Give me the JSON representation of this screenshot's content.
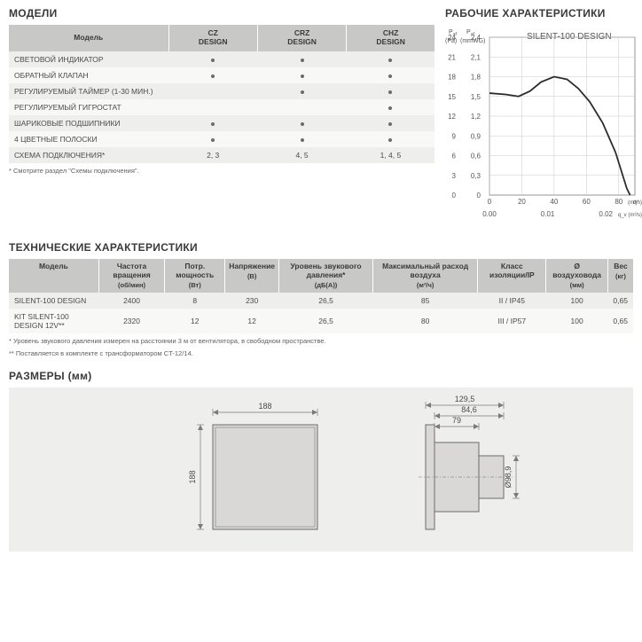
{
  "sections": {
    "models_title": "МОДЕЛИ",
    "perf_title": "РАБОЧИЕ ХАРАКТЕРИСТИКИ",
    "specs_title": "ТЕХНИЧЕСКИЕ ХАРАКТЕРИСТИКИ",
    "dims_title": "РАЗМЕРЫ (мм)"
  },
  "models": {
    "headers": [
      "Модель",
      "CZ\nDESIGN",
      "CRZ\nDESIGN",
      "CHZ\nDESIGN"
    ],
    "rows": [
      {
        "label": "СВЕТОВОЙ ИНДИКАТОР",
        "cz": true,
        "crz": true,
        "chz": true
      },
      {
        "label": "ОБРАТНЫЙ КЛАПАН",
        "cz": true,
        "crz": true,
        "chz": true
      },
      {
        "label": "РЕГУЛИРУЕМЫЙ ТАЙМЕР (1-30 МИН.)",
        "cz": false,
        "crz": true,
        "chz": true
      },
      {
        "label": "РЕГУЛИРУЕМЫЙ ГИГРОСТАТ",
        "cz": false,
        "crz": false,
        "chz": true
      },
      {
        "label": "ШАРИКОВЫЕ ПОДШИПНИКИ",
        "cz": true,
        "crz": true,
        "chz": true
      },
      {
        "label": "4 ЦВЕТНЫЕ ПОЛОСКИ",
        "cz": true,
        "crz": true,
        "chz": true
      }
    ],
    "scheme_row": {
      "label": "СХЕМА ПОДКЛЮЧЕНИЯ*",
      "cz": "2, 3",
      "crz": "4, 5",
      "chz": "1, 4, 5"
    },
    "footnote": "* Смотрите раздел \"Схемы подключения\"."
  },
  "chart": {
    "type": "line",
    "title": "SILENT-100 DESIGN",
    "title_fontsize": 10,
    "axis_left1": {
      "label": "P_sf",
      "unit": "(Pa)",
      "ticks": [
        0,
        3,
        6,
        9,
        12,
        15,
        18,
        21,
        24
      ]
    },
    "axis_left2": {
      "label": "P_sf",
      "unit": "(mmWG)",
      "ticks": [
        0,
        0.3,
        0.6,
        0.9,
        1.2,
        1.5,
        1.8,
        2.1,
        2.4
      ]
    },
    "axis_bottom1": {
      "label": "q_v (m³/h)",
      "ticks": [
        0,
        20,
        40,
        60,
        80
      ]
    },
    "axis_bottom2": {
      "label": "q_v (m³/s)",
      "ticks": [
        0.0,
        0.01,
        0.02
      ]
    },
    "ylim": [
      0,
      24
    ],
    "xlim": [
      0,
      90
    ],
    "curve": [
      [
        0,
        15.5
      ],
      [
        10,
        15.3
      ],
      [
        18,
        15.0
      ],
      [
        25,
        15.8
      ],
      [
        32,
        17.2
      ],
      [
        40,
        18.0
      ],
      [
        48,
        17.6
      ],
      [
        55,
        16.2
      ],
      [
        62,
        14.2
      ],
      [
        70,
        11.0
      ],
      [
        78,
        6.5
      ],
      [
        85,
        1.0
      ],
      [
        87,
        0
      ]
    ],
    "line_color": "#2b2b2b",
    "line_width": 1.8,
    "grid_color": "#c8c8c8",
    "frame_color": "#7a7a7a",
    "background": "#ffffff",
    "tick_font": 8,
    "label_color": "#555"
  },
  "specs": {
    "headers": [
      {
        "t": "Модель",
        "u": ""
      },
      {
        "t": "Частота вращения",
        "u": "(об/мин)"
      },
      {
        "t": "Потр. мощность",
        "u": "(Вт)"
      },
      {
        "t": "Напряжение",
        "u": "(В)"
      },
      {
        "t": "Уровень звукового давления*",
        "u": "(дБ(А))"
      },
      {
        "t": "Максимальный расход воздуха",
        "u": "(м³/ч)"
      },
      {
        "t": "Класс изоляции/IP",
        "u": ""
      },
      {
        "t": "Ø воздуховода",
        "u": "(мм)"
      },
      {
        "t": "Вес",
        "u": "(кг)"
      }
    ],
    "rows": [
      [
        "SILENT-100 DESIGN",
        "2400",
        "8",
        "230",
        "26,5",
        "85",
        "II / IP45",
        "100",
        "0,65"
      ],
      [
        "KIT SILENT-100 DESIGN 12V**",
        "2320",
        "12",
        "12",
        "26,5",
        "80",
        "III / IP57",
        "100",
        "0,65"
      ]
    ],
    "footnote1": "* Уровень звукового давления измерен на расстоянии 3 м от вентилятора, в свободном пространстве.",
    "footnote2": "** Поставляется в комплекте с трансформатором CT-12/14."
  },
  "dims": {
    "front": {
      "w": "188",
      "h": "188"
    },
    "side": {
      "total": "129,5",
      "a": "84,6",
      "b": "79",
      "dia": "Ø98,9"
    },
    "line_color": "#7a7a7a",
    "fill": "#eeeeed",
    "shape_fill": "#d9d8d6",
    "shape_stroke": "#6b6b6a"
  },
  "colors": {
    "header_bg": "#c8c8c7",
    "row_odd": "#eeeeed",
    "row_even": "#f8f8f7",
    "text": "#4a4a4a"
  }
}
